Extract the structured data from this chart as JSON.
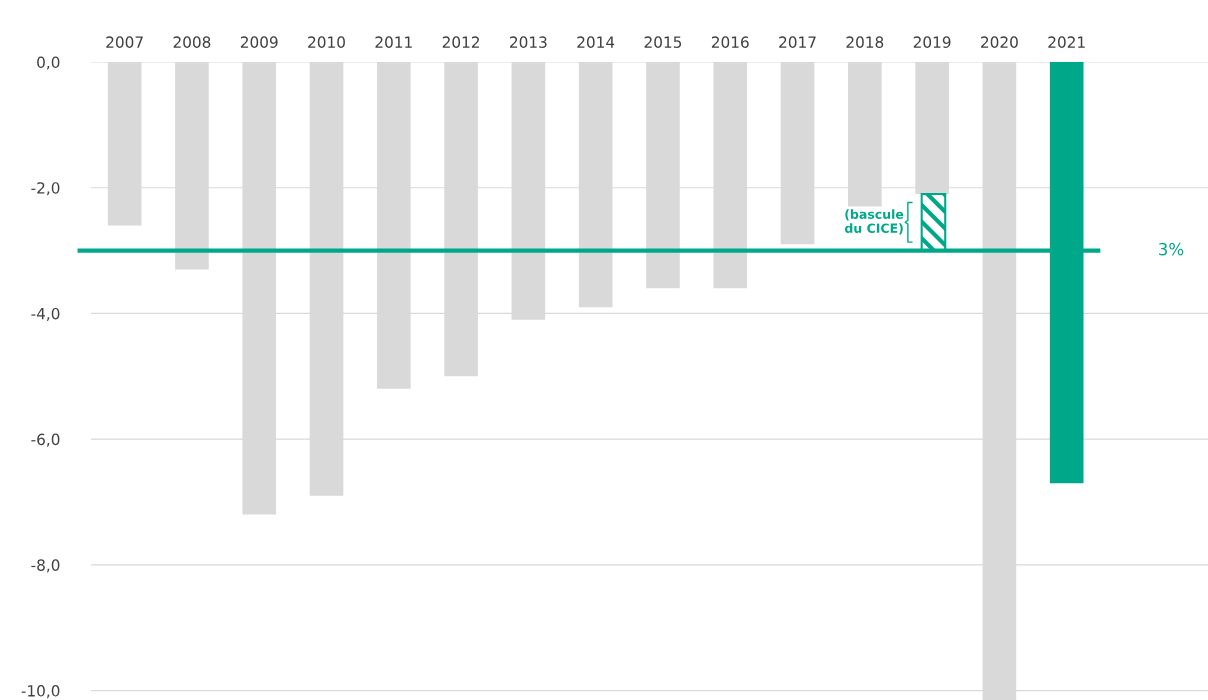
{
  "chart_data": {
    "type": "bar",
    "stacked": true,
    "categories": [
      "2007",
      "2008",
      "2009",
      "2010",
      "2011",
      "2012",
      "2013",
      "2014",
      "2015",
      "2016",
      "2017",
      "2018",
      "2019",
      "2020",
      "2021"
    ],
    "series": [
      {
        "colors": [
          "#d9d9d9",
          "#d9d9d9",
          "#d9d9d9",
          "#d9d9d9",
          "#d9d9d9",
          "#d9d9d9",
          "#d9d9d9",
          "#d9d9d9",
          "#d9d9d9",
          "#d9d9d9",
          "#d9d9d9",
          "#d9d9d9",
          "#d9d9d9",
          "#d9d9d9",
          "#00a88a"
        ],
        "values": [
          -2.6,
          -3.3,
          -7.2,
          -6.9,
          -5.2,
          -5.0,
          -4.1,
          -3.9,
          -3.6,
          -3.6,
          -2.9,
          -2.3,
          -2.1,
          -10.15,
          -6.7
        ]
      },
      {
        "color": "#00a88a",
        "values": [
          null,
          null,
          null,
          null,
          null,
          null,
          null,
          null,
          null,
          null,
          null,
          null,
          -0.9,
          null,
          null
        ]
      }
    ],
    "ylim": [
      -10.15,
      0
    ],
    "yticks": [
      {
        "value": 0,
        "label": "0,0"
      },
      {
        "value": -2,
        "label": "-2,0"
      },
      {
        "value": -4,
        "label": "-4,0"
      },
      {
        "value": -6,
        "label": "-6,0"
      },
      {
        "value": -8,
        "label": "-8,0"
      },
      {
        "value": -10,
        "label": "-10,0"
      }
    ],
    "grid": "y",
    "ref_lines": [
      {
        "axis": "y",
        "value": -3,
        "color": "#00a88a"
      }
    ],
    "annotations": [
      "(bascule\ndu CICE)",
      "3%"
    ]
  }
}
